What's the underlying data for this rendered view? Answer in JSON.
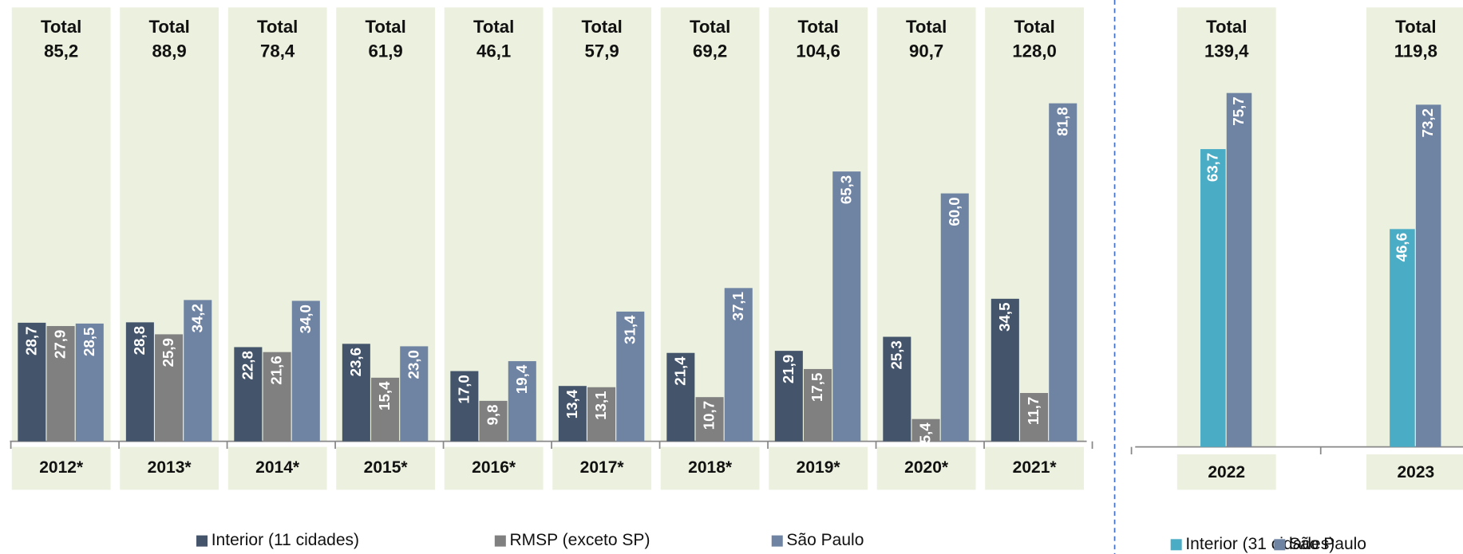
{
  "chart_data": [
    {
      "type": "bar",
      "categories": [
        "2012*",
        "2013*",
        "2014*",
        "2015*",
        "2016*",
        "2017*",
        "2018*",
        "2019*",
        "2020*",
        "2021*"
      ],
      "series": [
        {
          "name": "Interior (11 cidades)",
          "color": "#44546a",
          "values": [
            28.7,
            28.8,
            22.8,
            23.6,
            17.0,
            13.4,
            21.4,
            21.9,
            25.3,
            34.5
          ],
          "value_labels": [
            "28,7",
            "28,8",
            "22,8",
            "23,6",
            "17,0",
            "13,4",
            "21,4",
            "21,9",
            "25,3",
            "34,5"
          ]
        },
        {
          "name": "RMSP (exceto SP)",
          "color": "#808080",
          "values": [
            27.9,
            25.9,
            21.6,
            15.4,
            9.8,
            13.1,
            10.7,
            17.5,
            5.4,
            11.7
          ],
          "value_labels": [
            "27,9",
            "25,9",
            "21,6",
            "15,4",
            "9,8",
            "13,1",
            "10,7",
            "17,5",
            "5,4",
            "11,7"
          ]
        },
        {
          "name": "São Paulo",
          "color": "#6f83a3",
          "values": [
            28.5,
            34.2,
            34.0,
            23.0,
            19.4,
            31.4,
            37.1,
            65.3,
            60.0,
            81.8
          ],
          "value_labels": [
            "28,5",
            "34,2",
            "34,0",
            "23,0",
            "19,4",
            "31,4",
            "37,1",
            "65,3",
            "60,0",
            "81,8"
          ]
        }
      ],
      "total_label": "Total",
      "totals": [
        85.2,
        88.9,
        78.4,
        61.9,
        46.1,
        57.9,
        69.2,
        104.6,
        90.7,
        128.0
      ],
      "totals_labels": [
        "85,2",
        "88,9",
        "78,4",
        "61,9",
        "46,1",
        "57,9",
        "69,2",
        "104,6",
        "90,7",
        "128,0"
      ],
      "ylim": [
        0,
        105
      ]
    },
    {
      "type": "bar",
      "categories": [
        "2022",
        "2023"
      ],
      "series": [
        {
          "name": "Interior (31 cidades)",
          "color": "#4bacc6",
          "values": [
            63.7,
            46.6
          ],
          "value_labels": [
            "63,7",
            "46,6"
          ]
        },
        {
          "name": "São Paulo",
          "color": "#6f83a3",
          "values": [
            75.7,
            73.2
          ],
          "value_labels": [
            "75,7",
            "73,2"
          ]
        }
      ],
      "total_label": "Total",
      "totals": [
        139.4,
        119.8
      ],
      "totals_labels": [
        "139,4",
        "119,8"
      ],
      "ylim": [
        0,
        94
      ]
    }
  ]
}
